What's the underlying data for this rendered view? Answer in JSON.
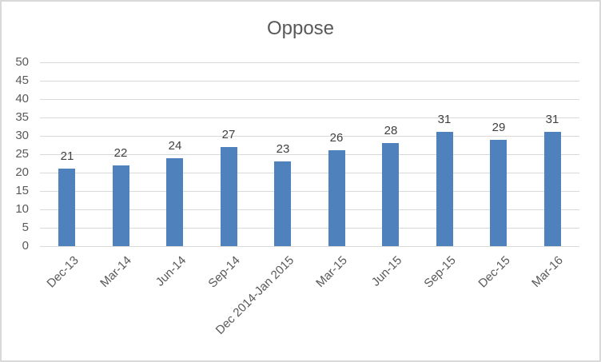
{
  "chart_data": {
    "type": "bar",
    "title": "Oppose",
    "xlabel": "",
    "ylabel": "",
    "ylim": [
      0,
      50
    ],
    "yticks": [
      0,
      5,
      10,
      15,
      20,
      25,
      30,
      35,
      40,
      45,
      50
    ],
    "grid": true,
    "legend": null,
    "bar_color": "#4f81bd",
    "categories": [
      "Dec-13",
      "Mar-14",
      "Jun-14",
      "Sep-14",
      "Dec 2014-Jan 2015",
      "Mar-15",
      "Jun-15",
      "Sep-15",
      "Dec-15",
      "Mar-16"
    ],
    "values": [
      21,
      22,
      24,
      27,
      23,
      26,
      28,
      31,
      29,
      31
    ],
    "data_labels": [
      "21",
      "22",
      "24",
      "27",
      "23",
      "26",
      "28",
      "31",
      "29",
      "31"
    ]
  }
}
